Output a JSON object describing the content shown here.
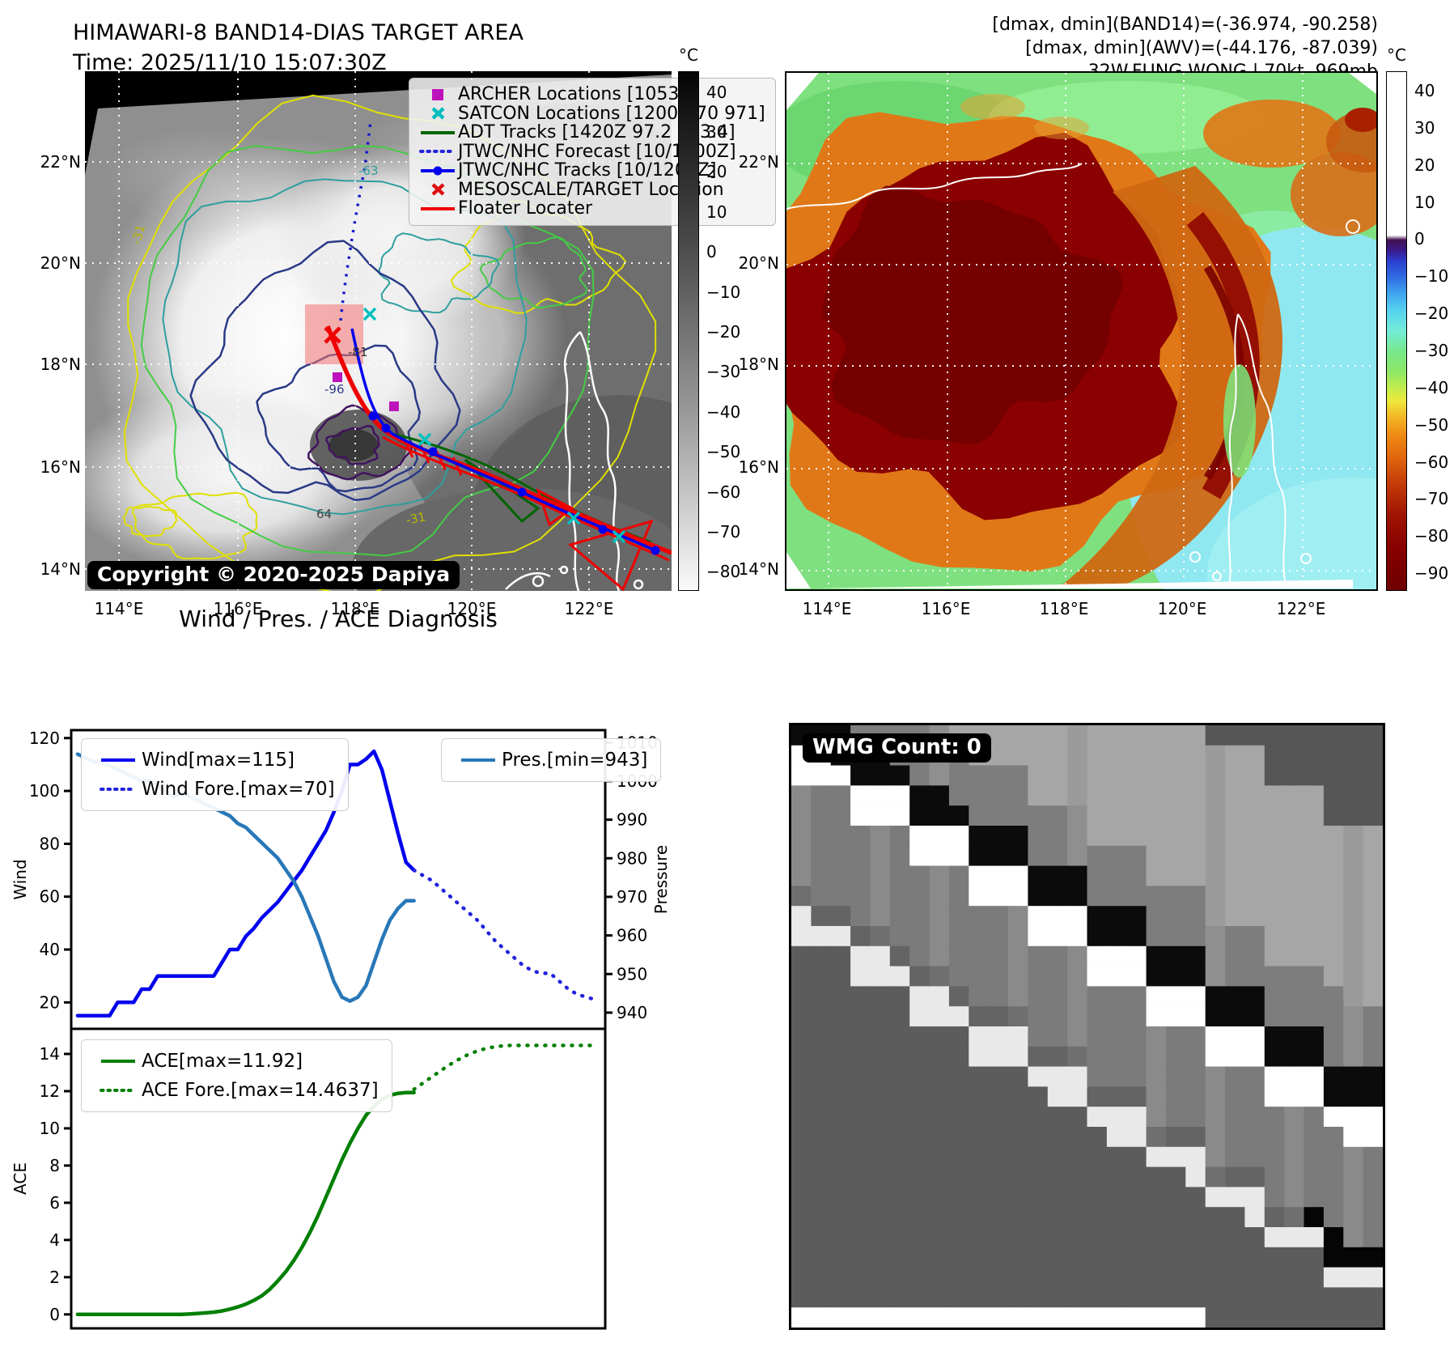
{
  "header": {
    "title": "HIMAWARI-8 BAND14-DIAS TARGET AREA",
    "time": "Time: 2025/11/10 15:07:30Z",
    "right_lines": [
      "[dmax, dmin](BAND14)=(-36.974, -90.258)",
      "[dmax, dmin](AWV)=(-44.176, -87.039)",
      "32W.FUNG-WONG | 70kt, 969mb"
    ]
  },
  "map_left": {
    "copyright": "Copyright © 2020-2025 Dapiya",
    "lat_ticks": [
      "22°N",
      "20°N",
      "18°N",
      "16°N",
      "14°N"
    ],
    "lon_ticks": [
      "114°E",
      "116°E",
      "118°E",
      "120°E",
      "122°E"
    ],
    "colorbar": {
      "unit": "°C",
      "ticks": [
        "40",
        "30",
        "20",
        "10",
        "0",
        "−10",
        "−20",
        "−30",
        "−40",
        "−50",
        "−60",
        "−70",
        "−80"
      ]
    },
    "legend": [
      {
        "label": "ARCHER Locations [1053Z]",
        "marker": "square",
        "color": "#bb12bb"
      },
      {
        "label": "SATCON Locations [1200Z 70 971]",
        "marker": "x",
        "color": "#00bcbc"
      },
      {
        "label": "ADT Tracks [1420Z 97.2 953.4]",
        "marker": "line",
        "color": "#006400"
      },
      {
        "label": "JTWC/NHC Forecast [10/1200Z]",
        "marker": "dotted",
        "color": "#2222dd"
      },
      {
        "label": "JTWC/NHC Tracks [10/1200Z]",
        "marker": "line-dot",
        "color": "#0000ee"
      },
      {
        "label": "MESOSCALE/TARGET Location",
        "marker": "x",
        "color": "#dd1111"
      },
      {
        "label": "Floater Locater",
        "marker": "line",
        "color": "#ee0000"
      }
    ],
    "contour_labels": [
      {
        "text": "-31",
        "color": "#b8b800"
      },
      {
        "text": "-63",
        "color": "#2f9e9e"
      },
      {
        "text": "64",
        "color": "#444444"
      },
      {
        "text": "-81",
        "color": "#333333"
      },
      {
        "text": "-96",
        "color": "#2a3a86"
      }
    ]
  },
  "map_right": {
    "lat_ticks": [
      "22°N",
      "20°N",
      "18°N",
      "16°N",
      "14°N"
    ],
    "lon_ticks": [
      "114°E",
      "116°E",
      "118°E",
      "120°E",
      "122°E"
    ],
    "colorbar": {
      "unit": "°C",
      "ticks": [
        "40",
        "30",
        "20",
        "10",
        "0",
        "−10",
        "−20",
        "−30",
        "−40",
        "−50",
        "−60",
        "−70",
        "−80",
        "−90"
      ]
    }
  },
  "wmg": {
    "label": "WMG Count: 0"
  },
  "chart_data": [
    {
      "type": "line",
      "title": "Wind / Pres. / ACE Diagnosis",
      "xlabel": "",
      "ylabel_left": "Wind",
      "ylabel_right": "Pressure",
      "ylim_left": [
        10,
        123
      ],
      "yticks_left": [
        20,
        40,
        60,
        80,
        100,
        120
      ],
      "ylim_right": [
        935.8,
        1013.2
      ],
      "yticks_right": [
        940,
        950,
        960,
        970,
        980,
        990,
        1000,
        1010
      ],
      "legend_left": [
        "Wind[max=115]",
        "Wind Fore.[max=70]"
      ],
      "legend_right": [
        "Pres.[min=943]"
      ],
      "grid": false,
      "series": [
        {
          "name": "Wind[max=115]",
          "color": "#0000ee",
          "style": "solid",
          "axis": "left",
          "x": [
            0.012,
            0.027,
            0.042,
            0.057,
            0.072,
            0.087,
            0.102,
            0.117,
            0.132,
            0.147,
            0.162,
            0.177,
            0.192,
            0.207,
            0.222,
            0.237,
            0.252,
            0.267,
            0.282,
            0.297,
            0.312,
            0.327,
            0.342,
            0.357,
            0.372,
            0.387,
            0.402,
            0.417,
            0.432,
            0.447,
            0.462,
            0.477,
            0.492,
            0.507,
            0.522,
            0.537,
            0.552,
            0.567,
            0.582,
            0.597,
            0.612,
            0.627,
            0.642
          ],
          "values": [
            15,
            15,
            15,
            15,
            15,
            20,
            20,
            20,
            25,
            25,
            30,
            30,
            30,
            30,
            30,
            30,
            30,
            30,
            35,
            40,
            40,
            45,
            48,
            52,
            55,
            58,
            62,
            66,
            70,
            75,
            80,
            85,
            92,
            100,
            110,
            110,
            112,
            115,
            108,
            96,
            84,
            73,
            70
          ]
        },
        {
          "name": "Wind Fore.[max=70]",
          "color": "#2222dd",
          "style": "dotted",
          "axis": "left",
          "x": [
            0.642,
            0.659,
            0.676,
            0.693,
            0.71,
            0.727,
            0.744,
            0.761,
            0.778,
            0.795,
            0.812,
            0.829,
            0.846,
            0.863,
            0.88,
            0.897,
            0.914,
            0.931,
            0.948,
            0.965,
            0.982
          ],
          "values": [
            70,
            68,
            66,
            63,
            60,
            57,
            54,
            51,
            47,
            43,
            40,
            37,
            34,
            32,
            31,
            31,
            28,
            25,
            23,
            22,
            21
          ]
        },
        {
          "name": "Pres.[min=943]",
          "color": "#2878b8",
          "style": "solid",
          "axis": "right",
          "x": [
            0.012,
            0.027,
            0.042,
            0.057,
            0.072,
            0.087,
            0.102,
            0.117,
            0.132,
            0.147,
            0.162,
            0.177,
            0.192,
            0.207,
            0.222,
            0.237,
            0.252,
            0.267,
            0.282,
            0.297,
            0.312,
            0.327,
            0.342,
            0.357,
            0.372,
            0.387,
            0.402,
            0.417,
            0.432,
            0.447,
            0.462,
            0.477,
            0.492,
            0.507,
            0.522,
            0.537,
            0.552,
            0.567,
            0.582,
            0.597,
            0.612,
            0.627,
            0.642
          ],
          "values": [
            1007,
            1006,
            1005,
            1005,
            1004,
            1003,
            1002,
            1001,
            1000,
            1000,
            999,
            997,
            996,
            997,
            996,
            995,
            994,
            993,
            992,
            991,
            989,
            988,
            986,
            984,
            982,
            980,
            977,
            974,
            970,
            965,
            960,
            954,
            948,
            944,
            943,
            944,
            947,
            953,
            959,
            964,
            967,
            969,
            969
          ]
        }
      ]
    },
    {
      "type": "line",
      "title": "",
      "xlabel": "",
      "ylabel_left": "ACE",
      "ylim_left": [
        -0.75,
        15.35
      ],
      "yticks_left": [
        0,
        2,
        4,
        6,
        8,
        10,
        12,
        14
      ],
      "legend_left": [
        "ACE[max=11.92]",
        "ACE Fore.[max=14.4637]"
      ],
      "grid": false,
      "series": [
        {
          "name": "ACE[max=11.92]",
          "color": "#007f00",
          "style": "solid",
          "axis": "left",
          "x": [
            0.012,
            0.027,
            0.042,
            0.057,
            0.072,
            0.087,
            0.102,
            0.117,
            0.132,
            0.147,
            0.162,
            0.177,
            0.192,
            0.207,
            0.222,
            0.237,
            0.252,
            0.267,
            0.282,
            0.297,
            0.312,
            0.327,
            0.342,
            0.357,
            0.372,
            0.387,
            0.402,
            0.417,
            0.432,
            0.447,
            0.462,
            0.477,
            0.492,
            0.507,
            0.522,
            0.537,
            0.552,
            0.567,
            0.582,
            0.597,
            0.612,
            0.627,
            0.642
          ],
          "values": [
            0,
            0,
            0,
            0,
            0,
            0,
            0,
            0,
            0,
            0,
            0,
            0,
            0,
            0,
            0.02,
            0.05,
            0.08,
            0.12,
            0.18,
            0.28,
            0.4,
            0.55,
            0.75,
            1.0,
            1.35,
            1.8,
            2.3,
            2.9,
            3.6,
            4.4,
            5.3,
            6.3,
            7.3,
            8.3,
            9.2,
            10.0,
            10.7,
            11.2,
            11.55,
            11.78,
            11.88,
            11.92,
            11.92
          ]
        },
        {
          "name": "ACE Fore.[max=14.4637]",
          "color": "#007f00",
          "style": "dotted",
          "axis": "left",
          "x": [
            0.642,
            0.662,
            0.682,
            0.702,
            0.722,
            0.742,
            0.762,
            0.782,
            0.802,
            0.822,
            0.842,
            0.862,
            0.882,
            0.902,
            0.922,
            0.942,
            0.962,
            0.982
          ],
          "values": [
            12.1,
            12.5,
            12.9,
            13.3,
            13.65,
            13.95,
            14.18,
            14.33,
            14.42,
            14.46,
            14.46,
            14.46,
            14.46,
            14.46,
            14.46,
            14.46,
            14.46,
            14.46
          ]
        }
      ]
    }
  ]
}
